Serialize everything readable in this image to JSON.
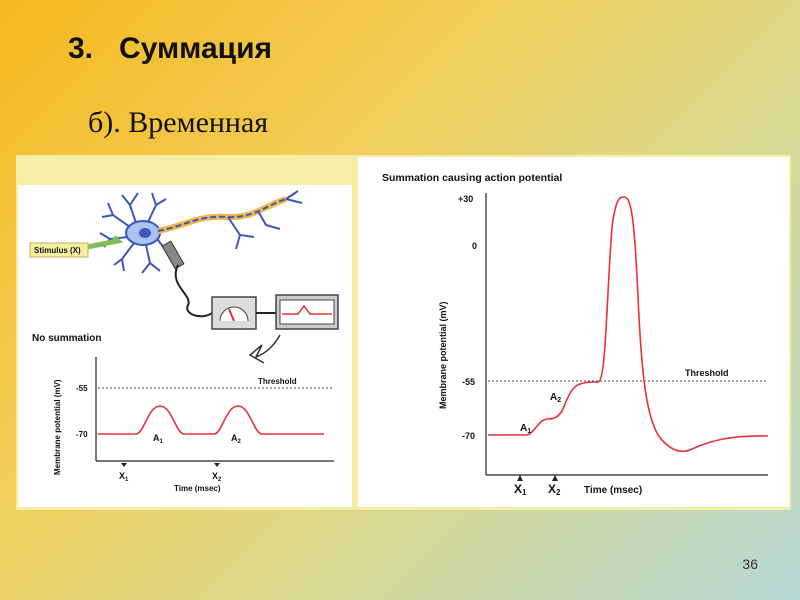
{
  "slide": {
    "title_number": "3.",
    "title": "Суммация",
    "subtitle": "б). Временная",
    "page_number": "36"
  },
  "left_panel": {
    "stimulus_label": "Stimulus (X)",
    "chart_title": "No summation",
    "ylabel": "Membrane potential (mV)",
    "xlabel": "Time (msec)",
    "threshold_label": "Threshold",
    "ytick_threshold": "-55",
    "ytick_rest": "-70",
    "x1_label": "X",
    "x2_label": "X",
    "a1_label": "A",
    "a2_label": "A",
    "sub1": "1",
    "sub2": "2"
  },
  "right_panel": {
    "chart_title": "Summation causing action potential",
    "ylabel": "Membrane potential (mV)",
    "xlabel": "Time (msec)",
    "threshold_label": "Threshold",
    "ytick_top": "+30",
    "ytick_zero": "0",
    "ytick_threshold": "-55",
    "ytick_rest": "-70",
    "x1_label": "X",
    "x2_label": "X",
    "a1_label": "A",
    "a2_label": "A",
    "sub1": "1",
    "sub2": "2"
  },
  "colors": {
    "trace": "#e8303a",
    "neuron": "#3d56b8",
    "stimulus": "#7ebf57",
    "frame": "#f7eea6"
  }
}
